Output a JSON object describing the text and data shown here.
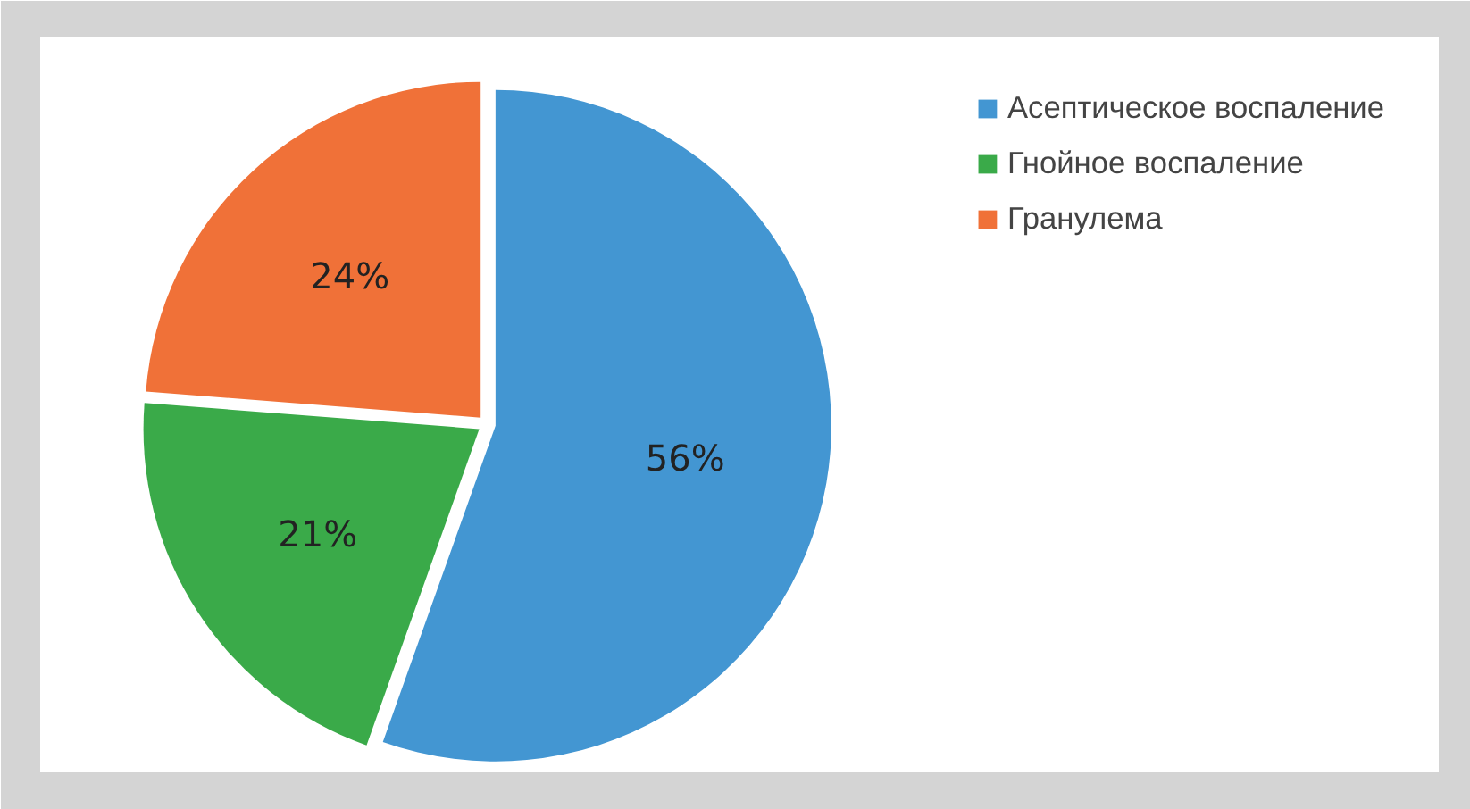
{
  "chart_data": {
    "type": "pie",
    "categories": [
      "Асептическое воспаление",
      "Гнойное воспаление",
      "Гранулема"
    ],
    "values": [
      56,
      21,
      24
    ],
    "colors": [
      "#4396d2",
      "#3aaa49",
      "#f07138"
    ],
    "value_labels": [
      "56%",
      "21%",
      "24%"
    ],
    "legend": "top right"
  }
}
